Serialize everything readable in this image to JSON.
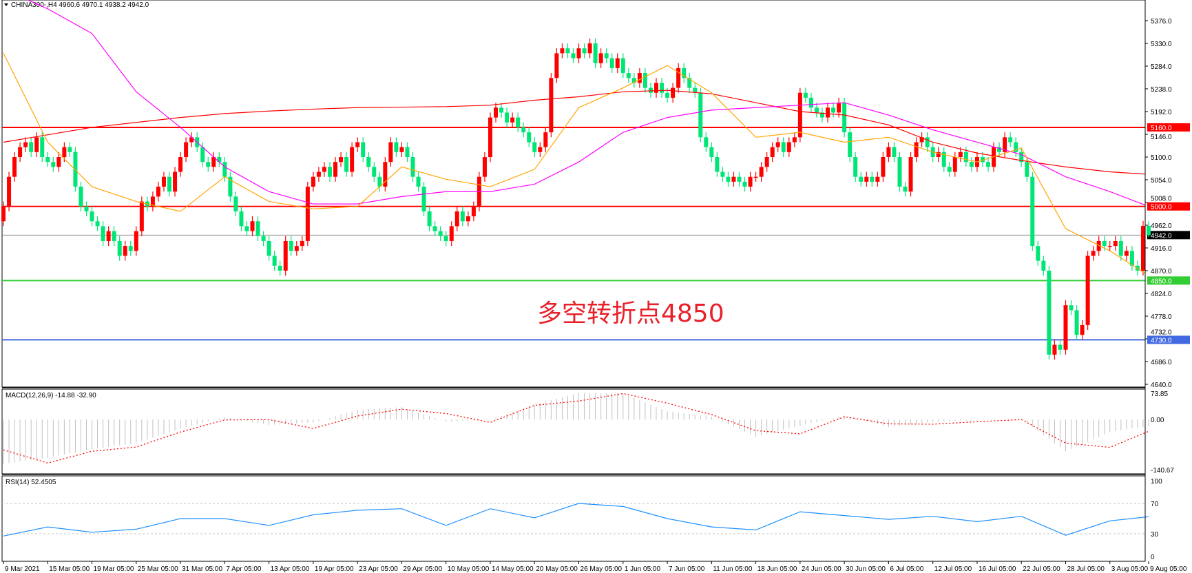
{
  "header": {
    "symbol": "CHINA300-,H4",
    "open": "4960.6",
    "high": "4970.1",
    "low": "4938.2",
    "close": "4942.0"
  },
  "annotation": "多空转折点4850",
  "colors": {
    "bull": "#ff0000",
    "bear": "#00e676",
    "ma_fast": "#ffa500",
    "ma_mid": "#ff00ff",
    "ma_slow": "#ff0000",
    "macd_hist": "#c0c0c0",
    "macd_signal": "#ff0000",
    "rsi": "#1e90ff"
  },
  "chart_data": [
    {
      "type": "candlestick",
      "price_axis": {
        "min": 4640.0,
        "max": 5376.0,
        "ticks": [
          "5376.0",
          "5330.0",
          "5284.0",
          "5238.0",
          "5192.0",
          "5146.0",
          "5100.0",
          "5054.0",
          "5008.0",
          "4962.0",
          "4916.0",
          "4870.0",
          "4824.0",
          "4778.0",
          "4732.0",
          "4686.0",
          "4640.0"
        ]
      },
      "time_labels": [
        "9 Mar 2021",
        "15 Mar 05:00",
        "19 Mar 05:00",
        "25 Mar 05:00",
        "31 Mar 05:00",
        "7 Apr 05:00",
        "13 Apr 05:00",
        "19 Apr 05:00",
        "23 Apr 05:00",
        "29 Apr 05:00",
        "10 May 05:00",
        "14 May 05:00",
        "20 May 05:00",
        "26 May 05:00",
        "1 Jun 05:00",
        "7 Jun 05:00",
        "11 Jun 05:00",
        "18 Jun 05:00",
        "24 Jun 05:00",
        "30 Jun 05:00",
        "6 Jul 05:00",
        "12 Jul 05:00",
        "16 Jul 05:00",
        "22 Jul 05:00",
        "28 Jul 05:00",
        "3 Aug 05:00",
        "9 Aug 05:00"
      ],
      "close": [
        5000,
        5060,
        5100,
        5120,
        5130,
        5110,
        5140,
        5100,
        5090,
        5080,
        5100,
        5120,
        5110,
        5040,
        5000,
        4990,
        4970,
        4960,
        4930,
        4950,
        4930,
        4900,
        4920,
        4910,
        4950,
        5010,
        5000,
        5020,
        5040,
        5060,
        5030,
        5070,
        5100,
        5130,
        5140,
        5120,
        5090,
        5080,
        5100,
        5090,
        5060,
        5020,
        4990,
        4960,
        4950,
        4970,
        4940,
        4930,
        4900,
        4880,
        4870,
        4930,
        4910,
        4920,
        4930,
        5040,
        5060,
        5070,
        5080,
        5060,
        5090,
        5100,
        5070,
        5120,
        5130,
        5100,
        5080,
        5060,
        5040,
        5090,
        5130,
        5110,
        5120,
        5100,
        5060,
        5040,
        4990,
        4960,
        4950,
        4940,
        4930,
        4960,
        4990,
        4970,
        4980,
        5000,
        5060,
        5100,
        5180,
        5200,
        5190,
        5170,
        5180,
        5160,
        5150,
        5130,
        5110,
        5120,
        5150,
        5260,
        5310,
        5320,
        5310,
        5300,
        5320,
        5310,
        5330,
        5290,
        5310,
        5300,
        5280,
        5300,
        5270,
        5260,
        5250,
        5270,
        5240,
        5230,
        5250,
        5230,
        5220,
        5240,
        5280,
        5260,
        5240,
        5230,
        5140,
        5120,
        5100,
        5070,
        5060,
        5050,
        5060,
        5050,
        5040,
        5060,
        5060,
        5080,
        5100,
        5120,
        5130,
        5110,
        5130,
        5140,
        5230,
        5220,
        5200,
        5190,
        5180,
        5200,
        5190,
        5210,
        5150,
        5100,
        5060,
        5050,
        5060,
        5050,
        5060,
        5100,
        5120,
        5100,
        5040,
        5030,
        5100,
        5130,
        5140,
        5120,
        5100,
        5110,
        5080,
        5070,
        5100,
        5110,
        5090,
        5080,
        5100,
        5090,
        5080,
        5120,
        5110,
        5140,
        5130,
        5110,
        5090,
        5060,
        4920,
        4890,
        4870,
        4700,
        4720,
        4710,
        4800,
        4790,
        4740,
        4760,
        4900,
        4910,
        4930,
        4920,
        4920,
        4930,
        4900,
        4910,
        4880,
        4870,
        4960.6,
        4942.0
      ],
      "moving_averages_at_time_labels": {
        "fast": [
          5310,
          5130,
          5040,
          5010,
          4990,
          5060,
          5010,
          4995,
          5000,
          5080,
          5055,
          5040,
          5075,
          5200,
          5240,
          5285,
          5230,
          5140,
          5150,
          5130,
          5140,
          5110,
          5090,
          5118,
          4955,
          4910,
          4860
        ],
        "mid": [
          5440,
          5400,
          5350,
          5232,
          5160,
          5080,
          5030,
          5005,
          5005,
          5020,
          5030,
          5030,
          5045,
          5090,
          5150,
          5180,
          5195,
          5200,
          5205,
          5210,
          5185,
          5155,
          5130,
          5105,
          5060,
          5030,
          5000
        ],
        "slow": [
          5130,
          5145,
          5160,
          5170,
          5180,
          5188,
          5193,
          5197,
          5200,
          5201,
          5202,
          5205,
          5215,
          5222,
          5232,
          5235,
          5228,
          5210,
          5192,
          5185,
          5165,
          5130,
          5108,
          5093,
          5080,
          5070,
          5065
        ]
      },
      "horizontal_lines": [
        {
          "price": "5160.0",
          "color": "#ff0000",
          "label_bg": "#ff0000"
        },
        {
          "price": "5000.0",
          "color": "#ff0000",
          "label_bg": "#ff0000"
        },
        {
          "price": "4942.0",
          "color": "#808080",
          "label_bg": "#000000"
        },
        {
          "price": "4850.0",
          "color": "#32cd32",
          "label_bg": "#32cd32"
        },
        {
          "price": "4730.0",
          "color": "#4169e1",
          "label_bg": "#4169e1"
        }
      ]
    },
    {
      "type": "bar+line",
      "title": "MACD(12,26,9) -14.88 -32.90",
      "axis": {
        "max": 73.85,
        "min": -140.67,
        "ticks": [
          "73.85",
          "0.00",
          "-140.67"
        ]
      },
      "macd_at_time_labels": [
        -124,
        -107,
        -83,
        -66,
        -25,
        7,
        -15,
        -8,
        27,
        35,
        -6,
        0,
        42,
        75,
        73,
        23,
        8,
        -48,
        -17,
        11,
        -21,
        -6,
        -2,
        2,
        -89,
        -35,
        -15
      ],
      "signal_at_time_labels": [
        -85,
        -122,
        -89,
        -77,
        -35,
        -1,
        0,
        -25,
        10,
        29,
        17,
        -8,
        40,
        52,
        73,
        46,
        14,
        -31,
        -40,
        8,
        -12,
        -13,
        -6,
        0,
        -66,
        -78,
        -33
      ]
    },
    {
      "type": "line",
      "title": "RSI(14) 52.4505",
      "axis": {
        "min": 0,
        "max": 100,
        "ticks": [
          "100",
          "70",
          "30",
          "0"
        ],
        "levels": [
          70,
          30
        ]
      },
      "rsi_at_time_labels": [
        27,
        39,
        32,
        36,
        50,
        50,
        41,
        55,
        61,
        63,
        41,
        63,
        51,
        70,
        66,
        50,
        39,
        35,
        59,
        54,
        49,
        53,
        46,
        53,
        28,
        47,
        52.45
      ]
    }
  ]
}
